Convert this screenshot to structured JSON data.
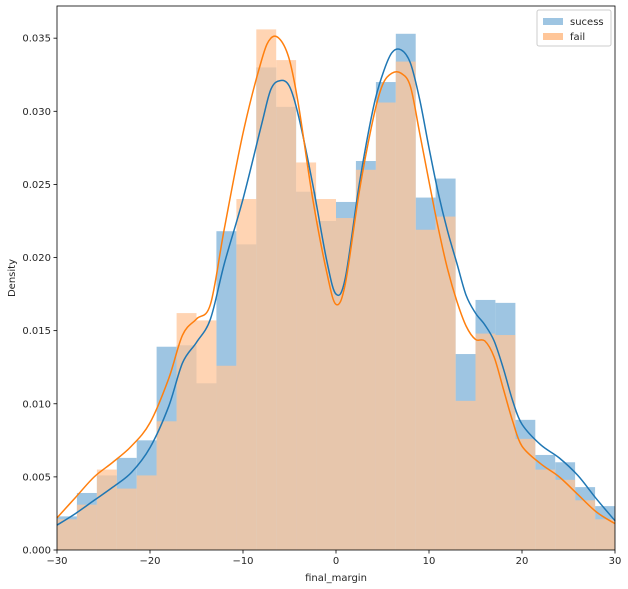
{
  "chart_data": {
    "type": "histogram-kde",
    "xlabel": "final_margin",
    "ylabel": "Density",
    "xlim": [
      -30,
      30
    ],
    "ylim": [
      0,
      0.0372
    ],
    "xticks": [
      -30,
      -20,
      -10,
      0,
      10,
      20,
      30
    ],
    "xtick_labels": [
      "−30",
      "−20",
      "−10",
      "0",
      "10",
      "20",
      "30"
    ],
    "yticks": [
      0.0,
      0.005,
      0.01,
      0.015,
      0.02,
      0.025,
      0.03,
      0.035
    ],
    "ytick_labels": [
      "0.000",
      "0.005",
      "0.010",
      "0.015",
      "0.020",
      "0.025",
      "0.030",
      "0.035"
    ],
    "grid": false,
    "legend_position": "top-right",
    "bin_edges": [
      -30,
      -27.86,
      -25.71,
      -23.57,
      -21.43,
      -19.29,
      -17.14,
      -15,
      -12.86,
      -10.71,
      -8.57,
      -6.43,
      -4.29,
      -2.14,
      0,
      2.14,
      4.29,
      6.43,
      8.57,
      10.71,
      12.86,
      15,
      17.14,
      19.29,
      21.43,
      23.57,
      25.71,
      27.86,
      30
    ],
    "series": [
      {
        "name": "sucess",
        "color": "#1f77b4",
        "hist_color": "#9ec5e2",
        "hist": [
          0.0023,
          0.0039,
          0.0051,
          0.0063,
          0.0075,
          0.0139,
          0.014,
          0.0114,
          0.0218,
          0.0209,
          0.033,
          0.0303,
          0.0245,
          0.0225,
          0.0238,
          0.0266,
          0.032,
          0.0353,
          0.0241,
          0.0254,
          0.0134,
          0.0171,
          0.0169,
          0.0089,
          0.0065,
          0.006,
          0.0043,
          0.003
        ],
        "kde_x": [
          -30,
          -28,
          -26,
          -24,
          -22,
          -20,
          -18,
          -16.5,
          -15,
          -13.5,
          -12,
          -10,
          -8,
          -7,
          -6,
          -5,
          -4,
          -2.5,
          -1,
          0,
          1,
          2.5,
          4,
          5,
          6,
          7,
          8,
          9,
          10,
          11,
          12,
          13,
          14,
          15,
          16,
          17,
          18,
          19,
          20,
          22,
          24,
          26,
          28,
          30
        ],
        "kde_y": [
          0.0017,
          0.0025,
          0.0034,
          0.0043,
          0.0053,
          0.007,
          0.0098,
          0.0128,
          0.0142,
          0.0158,
          0.0196,
          0.024,
          0.0291,
          0.0315,
          0.0321,
          0.0317,
          0.0296,
          0.025,
          0.0198,
          0.0175,
          0.0186,
          0.025,
          0.0302,
          0.0325,
          0.034,
          0.0342,
          0.0333,
          0.0308,
          0.0275,
          0.0244,
          0.0218,
          0.0196,
          0.0174,
          0.0162,
          0.0154,
          0.0143,
          0.0124,
          0.0102,
          0.0086,
          0.0072,
          0.0063,
          0.0051,
          0.0035,
          0.002
        ]
      },
      {
        "name": "fail",
        "color": "#ff7f0e",
        "hist_color": "#ffc699",
        "hist": [
          0.0021,
          0.0031,
          0.0055,
          0.0042,
          0.0051,
          0.0088,
          0.0162,
          0.0157,
          0.0126,
          0.024,
          0.0356,
          0.0335,
          0.0265,
          0.024,
          0.0227,
          0.026,
          0.0306,
          0.0334,
          0.0219,
          0.0228,
          0.0102,
          0.0148,
          0.0147,
          0.0076,
          0.0055,
          0.0048,
          0.0034,
          0.0021
        ],
        "kde_x": [
          -30,
          -28,
          -26,
          -24,
          -22,
          -20,
          -18,
          -16.5,
          -15,
          -13.5,
          -12,
          -10,
          -8,
          -7,
          -6,
          -5,
          -4,
          -2.5,
          -1,
          0,
          1,
          2.5,
          4,
          5,
          6,
          7,
          8,
          9,
          10,
          11,
          12,
          13,
          14,
          15,
          16,
          17,
          18,
          19,
          20,
          22,
          24,
          26,
          28,
          30
        ],
        "kde_y": [
          0.0022,
          0.0036,
          0.005,
          0.006,
          0.0071,
          0.0087,
          0.0117,
          0.0147,
          0.0158,
          0.0168,
          0.022,
          0.0285,
          0.0335,
          0.035,
          0.0349,
          0.0335,
          0.0303,
          0.024,
          0.019,
          0.0168,
          0.0182,
          0.0245,
          0.0295,
          0.0318,
          0.0326,
          0.0326,
          0.0317,
          0.0285,
          0.0252,
          0.022,
          0.0192,
          0.017,
          0.0153,
          0.0144,
          0.0143,
          0.0132,
          0.011,
          0.0088,
          0.0071,
          0.0059,
          0.005,
          0.0038,
          0.0026,
          0.0018
        ]
      }
    ]
  }
}
